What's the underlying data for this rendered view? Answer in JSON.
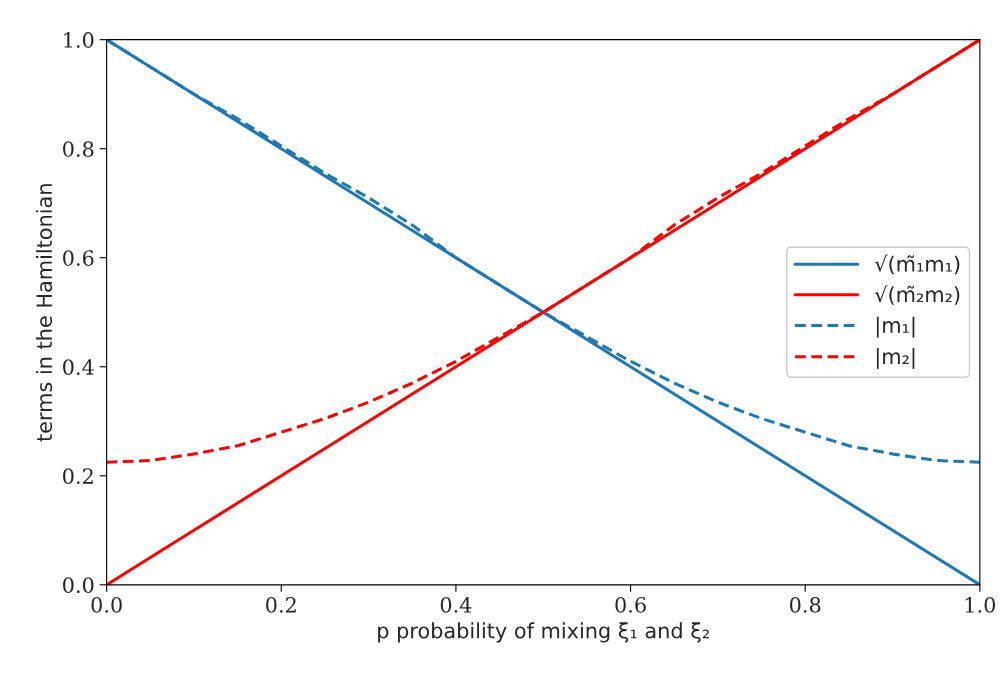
{
  "chart_data": {
    "type": "line",
    "xlabel": "p probability of mixing ξ₁ and ξ₂",
    "ylabel": "terms in the Hamiltonian",
    "x": [
      0,
      0.05,
      0.1,
      0.15,
      0.2,
      0.25,
      0.3,
      0.35,
      0.4,
      0.45,
      0.5,
      0.55,
      0.6,
      0.65,
      0.7,
      0.75,
      0.8,
      0.85,
      0.9,
      0.95,
      1.0
    ],
    "series": [
      {
        "name": "√(m̃₁m₁)",
        "color": "#1f77b4",
        "line_style": "solid",
        "values": [
          1.0,
          0.95,
          0.9,
          0.85,
          0.8,
          0.75,
          0.7,
          0.65,
          0.6,
          0.55,
          0.5,
          0.45,
          0.4,
          0.35,
          0.3,
          0.25,
          0.2,
          0.15,
          0.1,
          0.05,
          0.0
        ]
      },
      {
        "name": "√(m̃₂m₂)",
        "color": "#ff0000",
        "line_style": "solid",
        "values": [
          0.0,
          0.05,
          0.1,
          0.15,
          0.2,
          0.25,
          0.3,
          0.35,
          0.4,
          0.45,
          0.5,
          0.55,
          0.6,
          0.65,
          0.7,
          0.75,
          0.8,
          0.85,
          0.9,
          0.95,
          1.0
        ]
      },
      {
        "name": "|m₁|",
        "color": "#1f77b4",
        "line_style": "dashed",
        "values": [
          1.0,
          0.95,
          0.9,
          0.855,
          0.805,
          0.755,
          0.71,
          0.66,
          0.6,
          0.55,
          0.5,
          0.455,
          0.41,
          0.37,
          0.335,
          0.305,
          0.28,
          0.255,
          0.24,
          0.228,
          0.225
        ]
      },
      {
        "name": "|m₂|",
        "color": "#ff0000",
        "line_style": "dashed",
        "values": [
          0.225,
          0.228,
          0.24,
          0.255,
          0.28,
          0.305,
          0.335,
          0.37,
          0.41,
          0.455,
          0.5,
          0.55,
          0.6,
          0.66,
          0.71,
          0.755,
          0.805,
          0.855,
          0.9,
          0.95,
          1.0
        ]
      }
    ],
    "xlim": [
      0,
      1
    ],
    "ylim": [
      0,
      1
    ],
    "xticks": [
      {
        "value": 0,
        "label": "0.0"
      },
      0.2,
      0.4,
      0.6,
      0.8,
      {
        "value": 1,
        "label": "1.0"
      }
    ],
    "yticks": [
      {
        "value": 0,
        "label": "0.0"
      },
      0.2,
      0.4,
      0.6,
      0.8,
      {
        "value": 1,
        "label": "1.0"
      }
    ],
    "grid": false,
    "legend": "right",
    "marker": "none"
  }
}
